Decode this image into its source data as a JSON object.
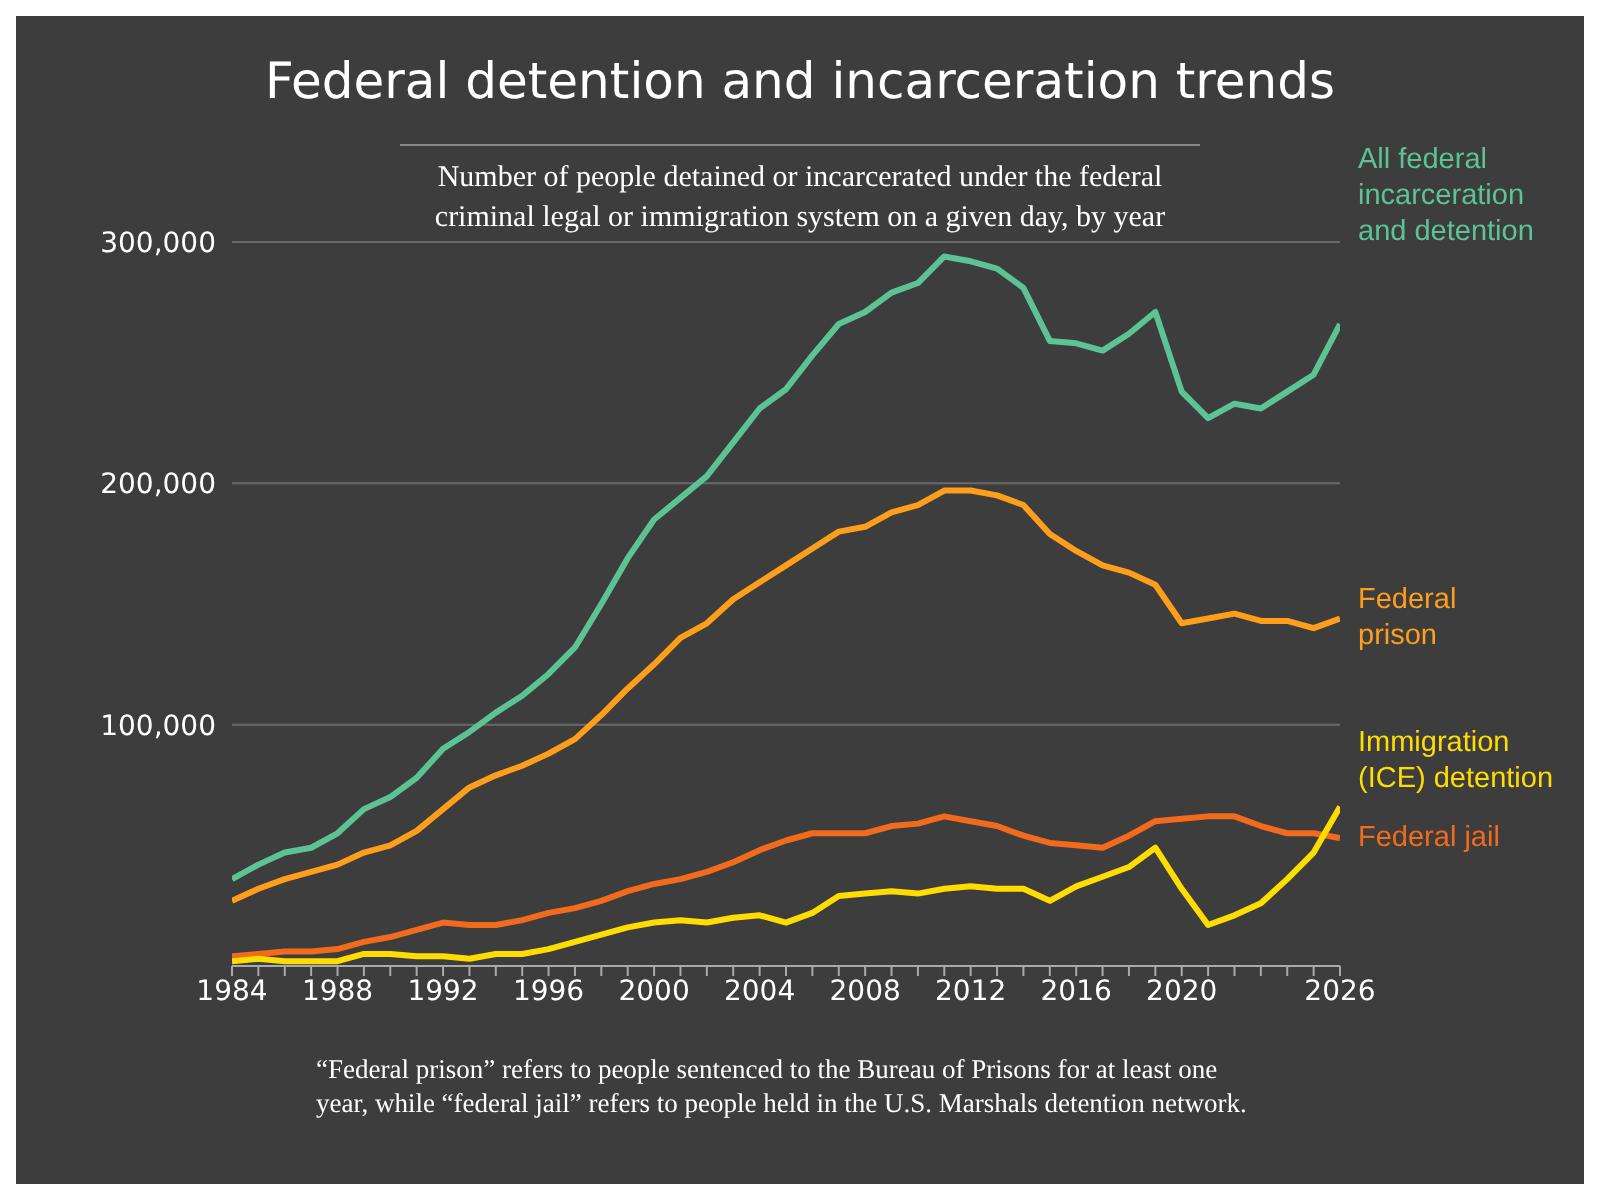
{
  "chart_data": {
    "type": "line",
    "title": "Federal detention and incarceration trends",
    "subtitle": "Number of people detained or incarcerated under the federal criminal legal or immigration system on a given day, by year",
    "x": [
      1984,
      1985,
      1986,
      1987,
      1988,
      1989,
      1990,
      1991,
      1992,
      1993,
      1994,
      1995,
      1996,
      1997,
      1998,
      1999,
      2000,
      2001,
      2002,
      2003,
      2004,
      2005,
      2006,
      2007,
      2008,
      2009,
      2010,
      2011,
      2012,
      2013,
      2014,
      2015,
      2016,
      2017,
      2018,
      2019,
      2020,
      2021,
      2022,
      2023,
      2024,
      2025,
      2026
    ],
    "series": [
      {
        "name": "All federal incarceration and detention",
        "color": "#5cc397",
        "values": [
          36000,
          42000,
          47000,
          49000,
          55000,
          65000,
          70000,
          78000,
          90000,
          97000,
          105000,
          112000,
          121000,
          132000,
          150000,
          169000,
          185000,
          194000,
          203000,
          217000,
          231000,
          239000,
          253000,
          266000,
          271000,
          279000,
          283000,
          294000,
          292000,
          289000,
          281000,
          259000,
          258000,
          255000,
          262000,
          271000,
          238000,
          227000,
          233000,
          231000,
          238000,
          245000,
          266000
        ]
      },
      {
        "name": "Federal prison",
        "color": "#ff9e1b",
        "values": [
          27000,
          32000,
          36000,
          39000,
          42000,
          47000,
          50000,
          56000,
          65000,
          74000,
          79000,
          83000,
          88000,
          94000,
          104000,
          115000,
          125000,
          136000,
          142000,
          152000,
          159000,
          166000,
          173000,
          180000,
          182000,
          188000,
          191000,
          197000,
          197000,
          195000,
          191000,
          179000,
          172000,
          166000,
          163000,
          158000,
          142000,
          144000,
          146000,
          143000,
          143000,
          140000,
          144000
        ]
      },
      {
        "name": "Federal jail",
        "color": "#f26b1d",
        "values": [
          4000,
          5000,
          6000,
          6000,
          7000,
          10000,
          12000,
          15000,
          18000,
          17000,
          17000,
          19000,
          22000,
          24000,
          27000,
          31000,
          34000,
          36000,
          39000,
          43000,
          48000,
          52000,
          55000,
          55000,
          55000,
          58000,
          59000,
          62000,
          60000,
          58000,
          54000,
          51000,
          50000,
          49000,
          54000,
          60000,
          61000,
          62000,
          62000,
          58000,
          55000,
          55000,
          53000
        ]
      },
      {
        "name": "Immigration (ICE) detention",
        "color": "#ffdd00",
        "values": [
          2000,
          3000,
          2000,
          2000,
          2000,
          5000,
          5000,
          4000,
          4000,
          3000,
          5000,
          5000,
          7000,
          10000,
          13000,
          16000,
          18000,
          19000,
          18000,
          20000,
          21000,
          18000,
          22000,
          29000,
          30000,
          31000,
          30000,
          32000,
          33000,
          32000,
          32000,
          27000,
          33000,
          37000,
          41000,
          49000,
          32000,
          17000,
          21000,
          26000,
          36000,
          47000,
          66000
        ]
      }
    ],
    "xlim": [
      1984,
      2026
    ],
    "xticks": [
      1984,
      {
        "value": 1985,
        "label": null
      },
      {
        "value": 1986,
        "label": null
      },
      {
        "value": 1987,
        "label": null
      },
      1988,
      {
        "value": 1989,
        "label": null
      },
      {
        "value": 1990,
        "label": null
      },
      {
        "value": 1991,
        "label": null
      },
      1992,
      {
        "value": 1993,
        "label": null
      },
      {
        "value": 1994,
        "label": null
      },
      {
        "value": 1995,
        "label": null
      },
      1996,
      {
        "value": 1997,
        "label": null
      },
      {
        "value": 1998,
        "label": null
      },
      {
        "value": 1999,
        "label": null
      },
      2000,
      {
        "value": 2001,
        "label": null
      },
      {
        "value": 2002,
        "label": null
      },
      {
        "value": 2003,
        "label": null
      },
      2004,
      {
        "value": 2005,
        "label": null
      },
      {
        "value": 2006,
        "label": null
      },
      {
        "value": 2007,
        "label": null
      },
      2008,
      {
        "value": 2009,
        "label": null
      },
      {
        "value": 2010,
        "label": null
      },
      {
        "value": 2011,
        "label": null
      },
      2012,
      {
        "value": 2013,
        "label": null
      },
      {
        "value": 2014,
        "label": null
      },
      {
        "value": 2015,
        "label": null
      },
      2016,
      {
        "value": 2017,
        "label": null
      },
      {
        "value": 2018,
        "label": null
      },
      {
        "value": 2019,
        "label": null
      },
      2020,
      {
        "value": 2021,
        "label": null
      },
      {
        "value": 2022,
        "label": null
      },
      {
        "value": 2023,
        "label": null
      },
      {
        "value": 2024,
        "label": null
      },
      {
        "value": 2025,
        "label": null
      },
      2026
    ],
    "ylim": [
      0,
      300000
    ],
    "yticks": [
      {
        "value": 100000,
        "label": "100,000"
      },
      {
        "value": 200000,
        "label": "200,000"
      },
      {
        "value": 300000,
        "label": "300,000"
      }
    ],
    "grid": "y",
    "legend": false,
    "marker": "none",
    "line_style": "solid",
    "annotations": [
      "“Federal prison” refers to people sentenced to the Bureau of Prisons for at least one year, while “federal jail” refers to people held in the U.S. Marshals detention network."
    ]
  }
}
